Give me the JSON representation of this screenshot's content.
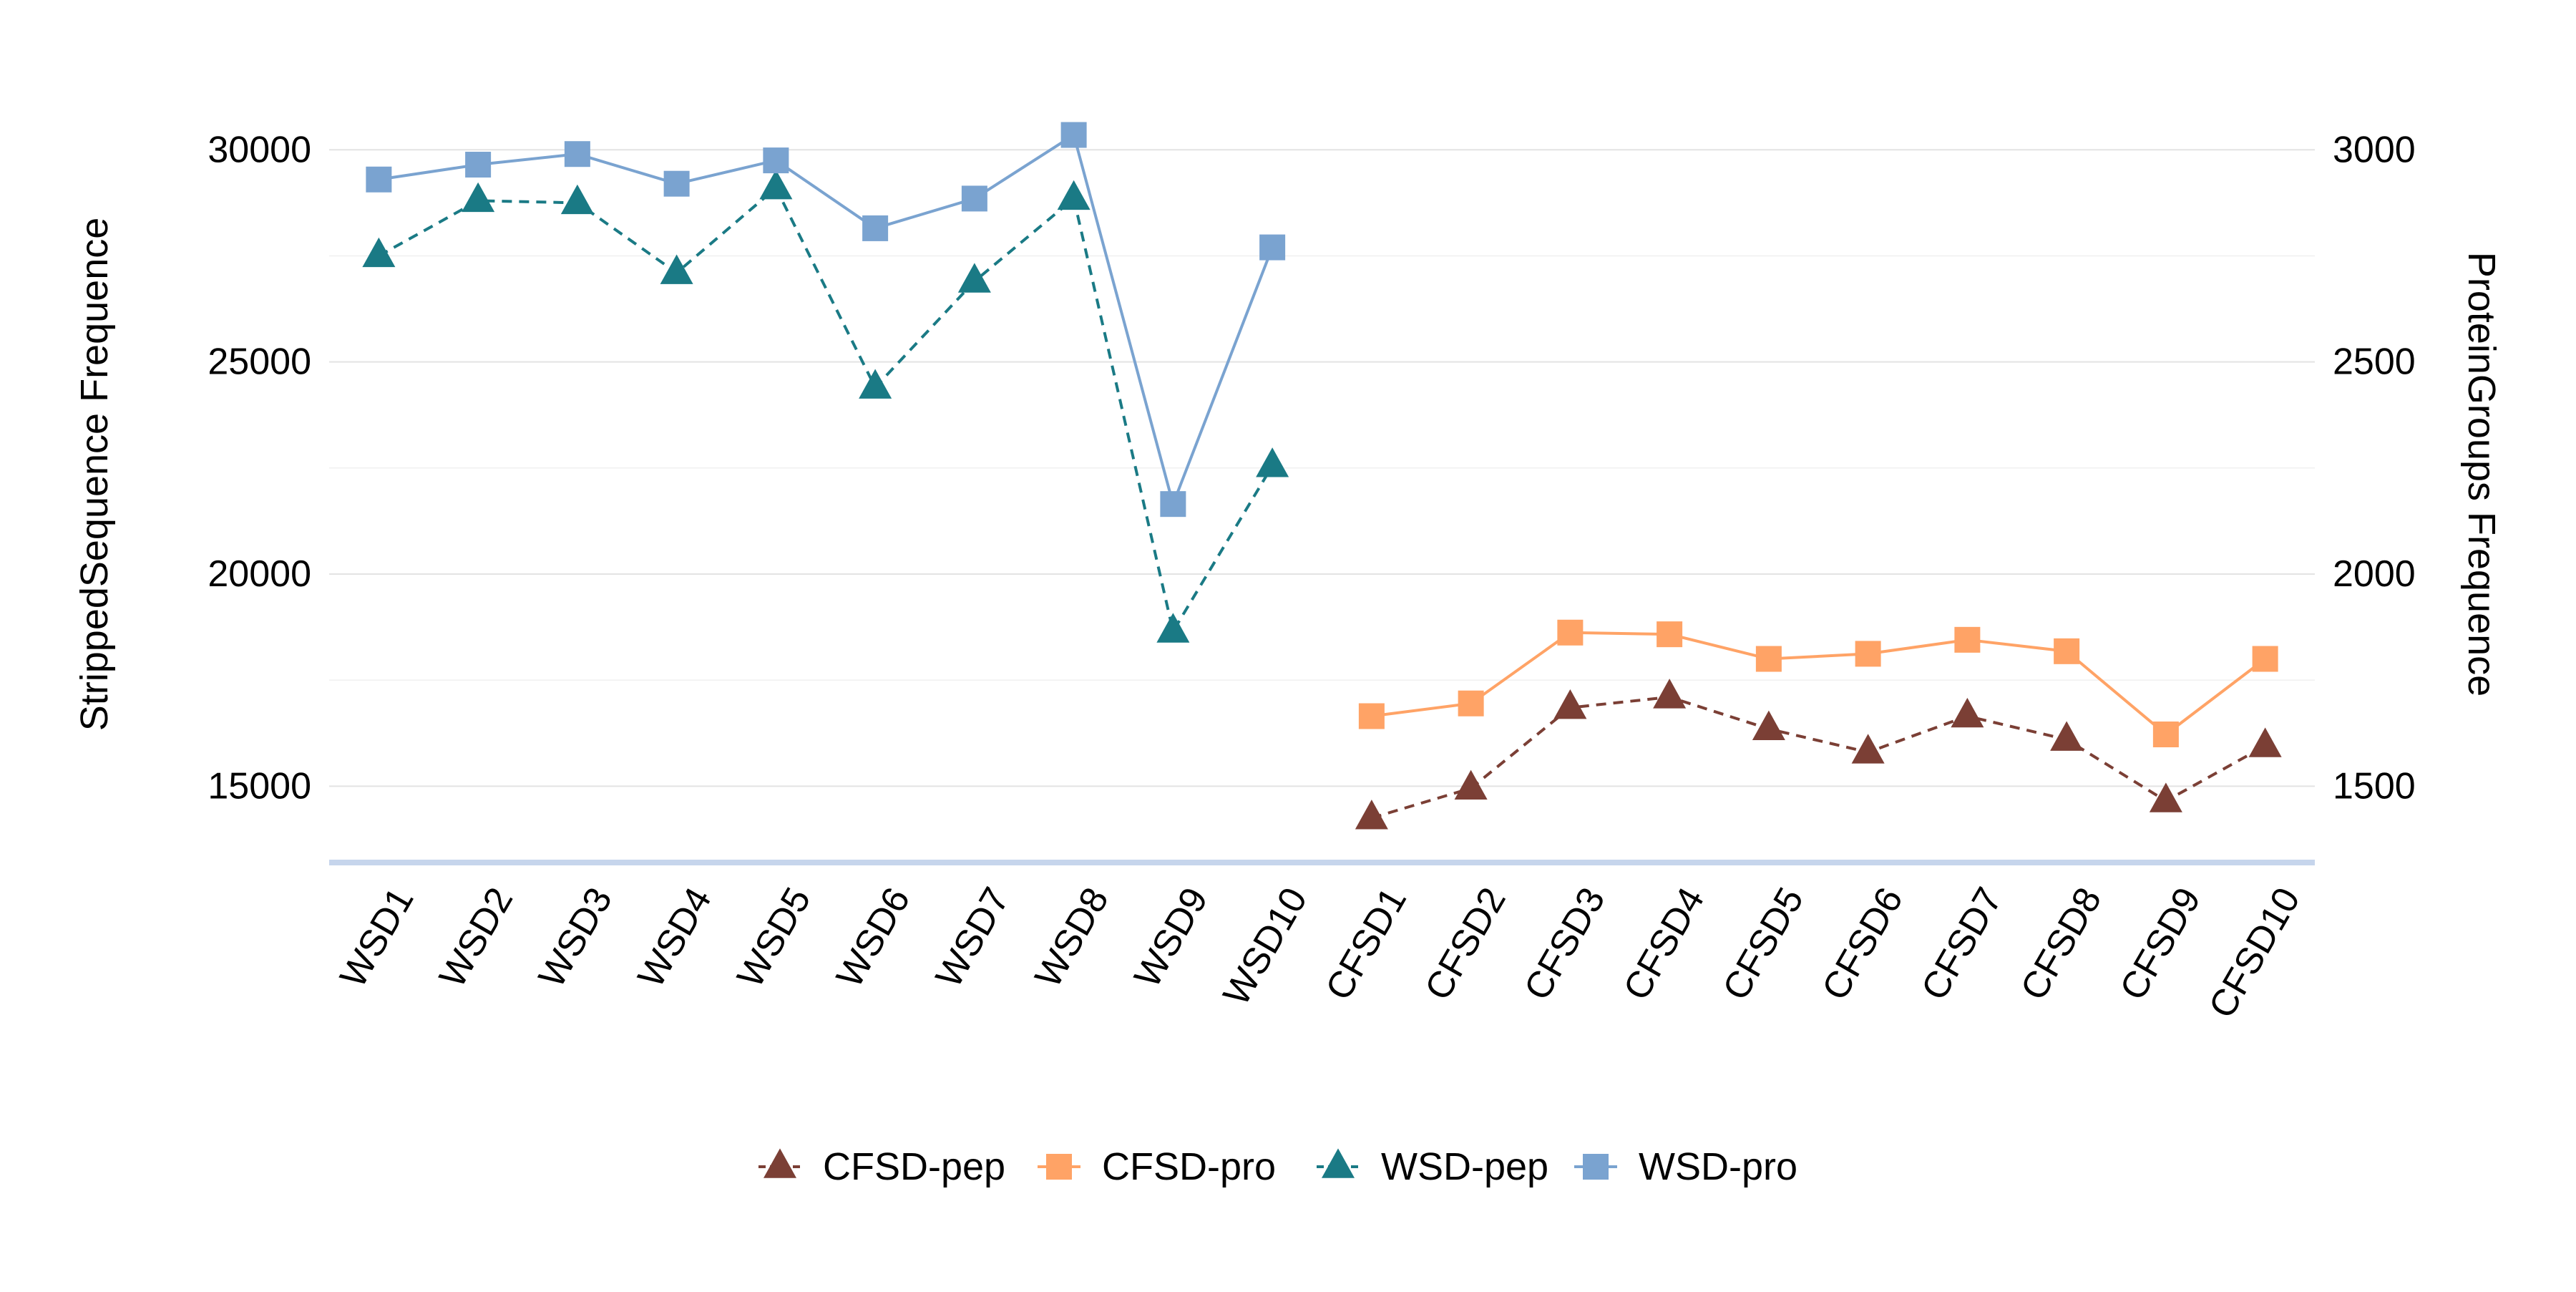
{
  "chart_data": {
    "type": "line",
    "categories": [
      "WSD1",
      "WSD2",
      "WSD3",
      "WSD4",
      "WSD5",
      "WSD6",
      "WSD7",
      "WSD8",
      "WSD9",
      "WSD10",
      "CFSD1",
      "CFSD2",
      "CFSD3",
      "CFSD4",
      "CFSD5",
      "CFSD6",
      "CFSD7",
      "CFSD8",
      "CFSD9",
      "CFSD10"
    ],
    "ylabel": "StrippedSequence Frequence",
    "y2label": "ProteinGroups Frequence",
    "ylim": [
      13200,
      31000
    ],
    "y2lim": [
      1320,
      3100
    ],
    "yticks": [
      15000,
      20000,
      25000,
      30000
    ],
    "y2ticks": [
      1500,
      2000,
      2500,
      3000
    ],
    "grid": true,
    "legend_position": "bottom",
    "series": [
      {
        "name": "CFSD-pep",
        "axis": "left",
        "marker": "triangle",
        "dash": true,
        "color": "#7B3F35",
        "values": [
          null,
          null,
          null,
          null,
          null,
          null,
          null,
          null,
          null,
          null,
          14250,
          14950,
          16850,
          17100,
          16350,
          15800,
          16650,
          16100,
          14650,
          15950
        ]
      },
      {
        "name": "CFSD-pro",
        "axis": "right",
        "marker": "square",
        "dash": false,
        "color": "#FFA366",
        "values": [
          null,
          null,
          null,
          null,
          null,
          null,
          null,
          null,
          null,
          null,
          1665,
          1695,
          1862,
          1858,
          1800,
          1812,
          1845,
          1818,
          1622,
          1800
        ]
      },
      {
        "name": "WSD-pep",
        "axis": "left",
        "marker": "triangle",
        "dash": true,
        "color": "#1A7A85",
        "values": [
          27500,
          28800,
          28750,
          27100,
          29100,
          24400,
          26900,
          28850,
          18650,
          22550,
          null,
          null,
          null,
          null,
          null,
          null,
          null,
          null,
          null,
          null
        ]
      },
      {
        "name": "WSD-pro",
        "axis": "right",
        "marker": "square",
        "dash": false,
        "color": "#7AA3D0",
        "values": [
          2930,
          2965,
          2990,
          2920,
          2975,
          2815,
          2885,
          3035,
          2165,
          2770,
          null,
          null,
          null,
          null,
          null,
          null,
          null,
          null,
          null,
          null
        ]
      }
    ]
  }
}
